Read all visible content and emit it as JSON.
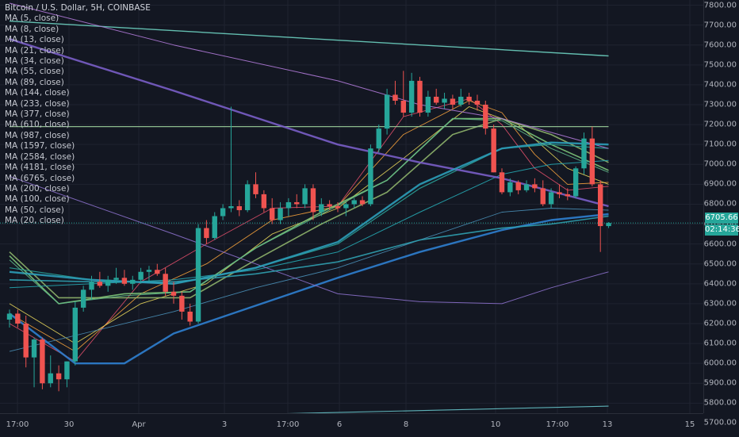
{
  "header": {
    "title": "Bitcoin / U.S. Dollar, 5H, COINBASE"
  },
  "legend": [
    "MA (5, close)",
    "MA (8, close)",
    "MA (13, close)",
    "MA (21, close)",
    "MA (34, close)",
    "MA (55, close)",
    "MA (89, close)",
    "MA (144, close)",
    "MA (233, close)",
    "MA (377, close)",
    "MA (610, close)",
    "MA (987, close)",
    "MA (1597, close)",
    "MA (2584, close)",
    "MA (4181, close)",
    "MA (6765, close)",
    "MA (200, close)",
    "MA (100, close)",
    "MA (50, close)",
    "MA (20, close)"
  ],
  "price_axis": {
    "last_price": "6705.66",
    "countdown": "02:14:36"
  },
  "colors": {
    "background": "#131722",
    "up": "#26a69a",
    "down": "#ef5350",
    "grid": "#1f2330"
  },
  "chart_data": {
    "type": "candlestick",
    "title": "Bitcoin / U.S. Dollar, 5H, COINBASE",
    "ylim": [
      5650,
      7850
    ],
    "yticks": [
      5700,
      5800,
      5900,
      6000,
      6100,
      6200,
      6300,
      6400,
      6500,
      6600,
      6700,
      6800,
      6900,
      7000,
      7100,
      7200,
      7300,
      7400,
      7500,
      7600,
      7700,
      7800
    ],
    "xlabels": [
      "17:00",
      "30",
      "Apr",
      "3",
      "17:00",
      "6",
      "8",
      "10",
      "17:00",
      "13",
      "15"
    ],
    "last_price": 6705.66,
    "ohlc": [
      [
        6220,
        6270,
        6180,
        6250
      ],
      [
        6250,
        6270,
        6180,
        6200
      ],
      [
        6200,
        6240,
        5980,
        6030
      ],
      [
        6030,
        6130,
        5880,
        6120
      ],
      [
        6120,
        6130,
        5870,
        5900
      ],
      [
        5900,
        6040,
        5880,
        5950
      ],
      [
        5950,
        5990,
        5860,
        5920
      ],
      [
        5920,
        6010,
        5880,
        6010
      ],
      [
        6010,
        6310,
        5990,
        6280
      ],
      [
        6280,
        6390,
        6260,
        6370
      ],
      [
        6370,
        6440,
        6320,
        6410
      ],
      [
        6410,
        6460,
        6380,
        6390
      ],
      [
        6390,
        6440,
        6360,
        6420
      ],
      [
        6420,
        6480,
        6400,
        6430
      ],
      [
        6430,
        6470,
        6390,
        6400
      ],
      [
        6400,
        6440,
        6370,
        6420
      ],
      [
        6420,
        6480,
        6400,
        6460
      ],
      [
        6460,
        6490,
        6410,
        6470
      ],
      [
        6470,
        6500,
        6440,
        6450
      ],
      [
        6450,
        6480,
        6340,
        6360
      ],
      [
        6360,
        6410,
        6300,
        6340
      ],
      [
        6340,
        6360,
        6220,
        6260
      ],
      [
        6260,
        6300,
        6190,
        6210
      ],
      [
        6210,
        6700,
        6200,
        6680
      ],
      [
        6680,
        6720,
        6600,
        6630
      ],
      [
        6630,
        6760,
        6620,
        6740
      ],
      [
        6740,
        6800,
        6720,
        6780
      ],
      [
        6780,
        7290,
        6760,
        6790
      ],
      [
        6790,
        6820,
        6740,
        6770
      ],
      [
        6770,
        6920,
        6760,
        6900
      ],
      [
        6900,
        6960,
        6830,
        6850
      ],
      [
        6850,
        6870,
        6760,
        6780
      ],
      [
        6780,
        6830,
        6700,
        6720
      ],
      [
        6720,
        6810,
        6700,
        6780
      ],
      [
        6780,
        6830,
        6740,
        6810
      ],
      [
        6810,
        6850,
        6780,
        6800
      ],
      [
        6800,
        6900,
        6780,
        6880
      ],
      [
        6880,
        6900,
        6720,
        6760
      ],
      [
        6760,
        6830,
        6740,
        6800
      ],
      [
        6800,
        6820,
        6770,
        6790
      ],
      [
        6790,
        6810,
        6760,
        6780
      ],
      [
        6780,
        6810,
        6740,
        6800
      ],
      [
        6800,
        6830,
        6780,
        6820
      ],
      [
        6820,
        6840,
        6790,
        6800
      ],
      [
        6800,
        7100,
        6790,
        7080
      ],
      [
        7080,
        7200,
        7060,
        7180
      ],
      [
        7180,
        7380,
        7150,
        7350
      ],
      [
        7350,
        7420,
        7300,
        7320
      ],
      [
        7320,
        7470,
        7240,
        7260
      ],
      [
        7260,
        7460,
        7240,
        7420
      ],
      [
        7420,
        7440,
        7240,
        7260
      ],
      [
        7260,
        7370,
        7240,
        7340
      ],
      [
        7340,
        7380,
        7300,
        7310
      ],
      [
        7310,
        7360,
        7280,
        7330
      ],
      [
        7330,
        7350,
        7280,
        7300
      ],
      [
        7300,
        7380,
        7290,
        7340
      ],
      [
        7340,
        7360,
        7300,
        7320
      ],
      [
        7320,
        7350,
        7270,
        7300
      ],
      [
        7300,
        7320,
        7150,
        7180
      ],
      [
        7180,
        7200,
        6960,
        6960
      ],
      [
        6960,
        6980,
        6850,
        6860
      ],
      [
        6860,
        6930,
        6840,
        6910
      ],
      [
        6910,
        6920,
        6850,
        6870
      ],
      [
        6870,
        6920,
        6860,
        6900
      ],
      [
        6900,
        6930,
        6860,
        6880
      ],
      [
        6880,
        6920,
        6790,
        6800
      ],
      [
        6800,
        6880,
        6780,
        6860
      ],
      [
        6860,
        6900,
        6830,
        6850
      ],
      [
        6850,
        6880,
        6820,
        6840
      ],
      [
        6840,
        6990,
        6830,
        6980
      ],
      [
        6980,
        7160,
        6950,
        7130
      ],
      [
        7130,
        7190,
        6890,
        6900
      ],
      [
        6900,
        6920,
        6560,
        6690
      ],
      [
        6690,
        6710,
        6680,
        6705.66
      ]
    ],
    "series": [
      {
        "name": "MA (5, close)",
        "x": [
          0,
          8,
          16,
          24,
          32,
          40,
          48,
          56,
          60,
          64,
          68,
          73
        ],
        "values": [
          6200,
          6010,
          6410,
          6600,
          6780,
          6790,
          7240,
          7330,
          7200,
          6980,
          6870,
          6890
        ]
      },
      {
        "name": "MA (8, close)",
        "x": [
          0,
          8,
          16,
          24,
          32,
          40,
          48,
          56,
          60,
          64,
          68,
          73
        ],
        "values": [
          6250,
          6060,
          6350,
          6500,
          6720,
          6790,
          7150,
          7320,
          7260,
          7050,
          6900,
          6910
        ]
      },
      {
        "name": "MA (13, close)",
        "x": [
          0,
          8,
          16,
          24,
          32,
          40,
          48,
          56,
          62,
          68,
          73
        ],
        "values": [
          6300,
          6100,
          6300,
          6400,
          6650,
          6780,
          7030,
          7290,
          7200,
          6980,
          6900
        ]
      },
      {
        "name": "MA (21, close)",
        "x": [
          0,
          6,
          14,
          22,
          30,
          38,
          46,
          54,
          60,
          66,
          73
        ],
        "values": [
          6540,
          6300,
          6350,
          6360,
          6580,
          6760,
          6920,
          7230,
          7230,
          7100,
          6970
        ]
      },
      {
        "name": "MA (34, close)",
        "x": [
          0,
          6,
          14,
          22,
          30,
          38,
          46,
          54,
          60,
          66,
          73
        ],
        "values": [
          6560,
          6330,
          6330,
          6330,
          6520,
          6700,
          6860,
          7150,
          7230,
          7150,
          7010
        ]
      },
      {
        "name": "MA (55, close)",
        "x": [
          0,
          10,
          20,
          30,
          40,
          50,
          60,
          66,
          73
        ],
        "values": [
          6480,
          6420,
          6400,
          6480,
          6600,
          6880,
          7080,
          7100,
          7080
        ]
      },
      {
        "name": "MA (89, close)",
        "x": [
          0,
          10,
          20,
          30,
          40,
          50,
          60,
          66,
          73
        ],
        "values": [
          6380,
          6400,
          6420,
          6470,
          6560,
          6760,
          6950,
          7000,
          7020
        ]
      },
      {
        "name": "MA (144, close)",
        "x": [
          0,
          10,
          20,
          30,
          40,
          50,
          60,
          66,
          73
        ],
        "values": [
          6060,
          6160,
          6260,
          6380,
          6480,
          6620,
          6760,
          6780,
          6770
        ]
      },
      {
        "name": "MA (200, close)",
        "x": [
          0,
          8,
          14,
          20,
          30,
          40,
          50,
          60,
          66,
          73
        ],
        "values": [
          6250,
          6000,
          6000,
          6150,
          6290,
          6430,
          6560,
          6670,
          6720,
          6750
        ]
      },
      {
        "name": "MA (377, close)",
        "x": [
          0,
          20,
          40,
          50,
          60,
          66,
          73
        ],
        "values": [
          6940,
          6650,
          6350,
          6310,
          6300,
          6380,
          6460
        ]
      },
      {
        "name": "MA (610, close)",
        "x": [
          0,
          73
        ],
        "values": [
          7190,
          7190
        ]
      },
      {
        "name": "MA (987, close)",
        "x": [
          0,
          73
        ],
        "values": [
          7720,
          7545
        ]
      },
      {
        "name": "MA (1597, close)",
        "x": [
          0,
          73
        ],
        "values": [
          5715,
          5785
        ]
      },
      {
        "name": "MA (2584, close)",
        "x": [
          0,
          20,
          40,
          50,
          60,
          73
        ],
        "values": [
          7810,
          7600,
          7420,
          7300,
          7230,
          7080
        ]
      },
      {
        "name": "MA (4181, close)",
        "x": [
          0,
          20,
          40,
          50,
          60,
          73
        ],
        "values": [
          7630,
          7370,
          7100,
          7010,
          6930,
          6790
        ]
      },
      {
        "name": "MA (100, close)",
        "x": [
          0,
          10,
          20,
          30,
          40,
          50,
          60,
          66,
          73
        ],
        "values": [
          6420,
          6410,
          6410,
          6450,
          6510,
          6620,
          6680,
          6700,
          6740
        ]
      },
      {
        "name": "MA (50, close)",
        "x": [
          0,
          10,
          20,
          30,
          40,
          50,
          60,
          66,
          73
        ],
        "values": [
          6460,
          6420,
          6400,
          6480,
          6610,
          6900,
          7080,
          7110,
          7100
        ]
      },
      {
        "name": "MA (20, close)",
        "x": [
          0,
          6,
          14,
          22,
          30,
          38,
          46,
          54,
          60,
          66,
          73
        ],
        "values": [
          6520,
          6300,
          6340,
          6360,
          6580,
          6750,
          6920,
          7230,
          7220,
          7080,
          6960
        ]
      }
    ]
  }
}
